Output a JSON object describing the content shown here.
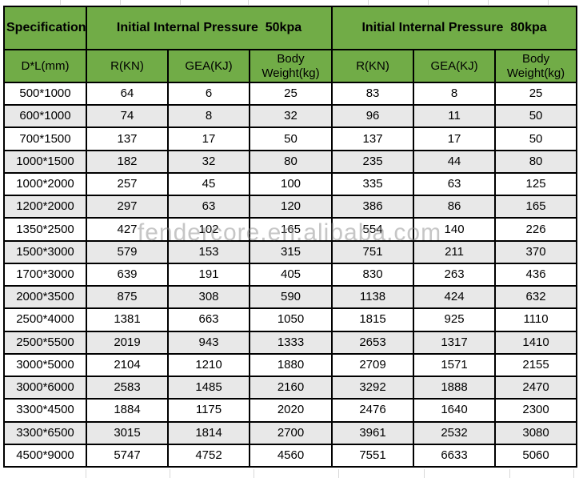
{
  "watermark": "fendercore.en.alibaba.com",
  "colors": {
    "header_green": "#71ac47",
    "row_stripe": "#e8e8e8",
    "row_plain": "#ffffff",
    "border": "#000000",
    "watermark_gray": "#8f8f8f"
  },
  "chart_data": {
    "type": "table",
    "header_groups": [
      {
        "label": "Specification",
        "colspan": 1
      },
      {
        "label": "Initial Internal Pressure  50kpa",
        "colspan": 3
      },
      {
        "label": "Initial Internal Pressure  80kpa",
        "colspan": 3
      }
    ],
    "columns": [
      "D*L(mm)",
      "R(KN)",
      "GEA(KJ)",
      "Body Weight(kg)",
      "R(KN)",
      "GEA(KJ)",
      "Body Weight(kg)"
    ],
    "rows": [
      [
        "500*1000",
        64,
        6,
        25,
        83,
        8,
        25
      ],
      [
        "600*1000",
        74,
        8,
        32,
        96,
        11,
        50
      ],
      [
        "700*1500",
        137,
        17,
        50,
        137,
        17,
        50
      ],
      [
        "1000*1500",
        182,
        32,
        80,
        235,
        44,
        80
      ],
      [
        "1000*2000",
        257,
        45,
        100,
        335,
        63,
        125
      ],
      [
        "1200*2000",
        297,
        63,
        120,
        386,
        86,
        165
      ],
      [
        "1350*2500",
        427,
        102,
        165,
        554,
        140,
        226
      ],
      [
        "1500*3000",
        579,
        153,
        315,
        751,
        211,
        370
      ],
      [
        "1700*3000",
        639,
        191,
        405,
        830,
        263,
        436
      ],
      [
        "2000*3500",
        875,
        308,
        590,
        1138,
        424,
        632
      ],
      [
        "2500*4000",
        1381,
        663,
        1050,
        1815,
        925,
        1110
      ],
      [
        "2500*5500",
        2019,
        943,
        1333,
        2653,
        1317,
        1410
      ],
      [
        "3000*5000",
        2104,
        1210,
        1880,
        2709,
        1571,
        2155
      ],
      [
        "3000*6000",
        2583,
        1485,
        2160,
        3292,
        1888,
        2470
      ],
      [
        "3300*4500",
        1884,
        1175,
        2020,
        2476,
        1640,
        2300
      ],
      [
        "3300*6500",
        3015,
        1814,
        2700,
        3961,
        2532,
        3080
      ],
      [
        "4500*9000",
        5747,
        4752,
        4560,
        7551,
        6633,
        5060
      ]
    ]
  }
}
